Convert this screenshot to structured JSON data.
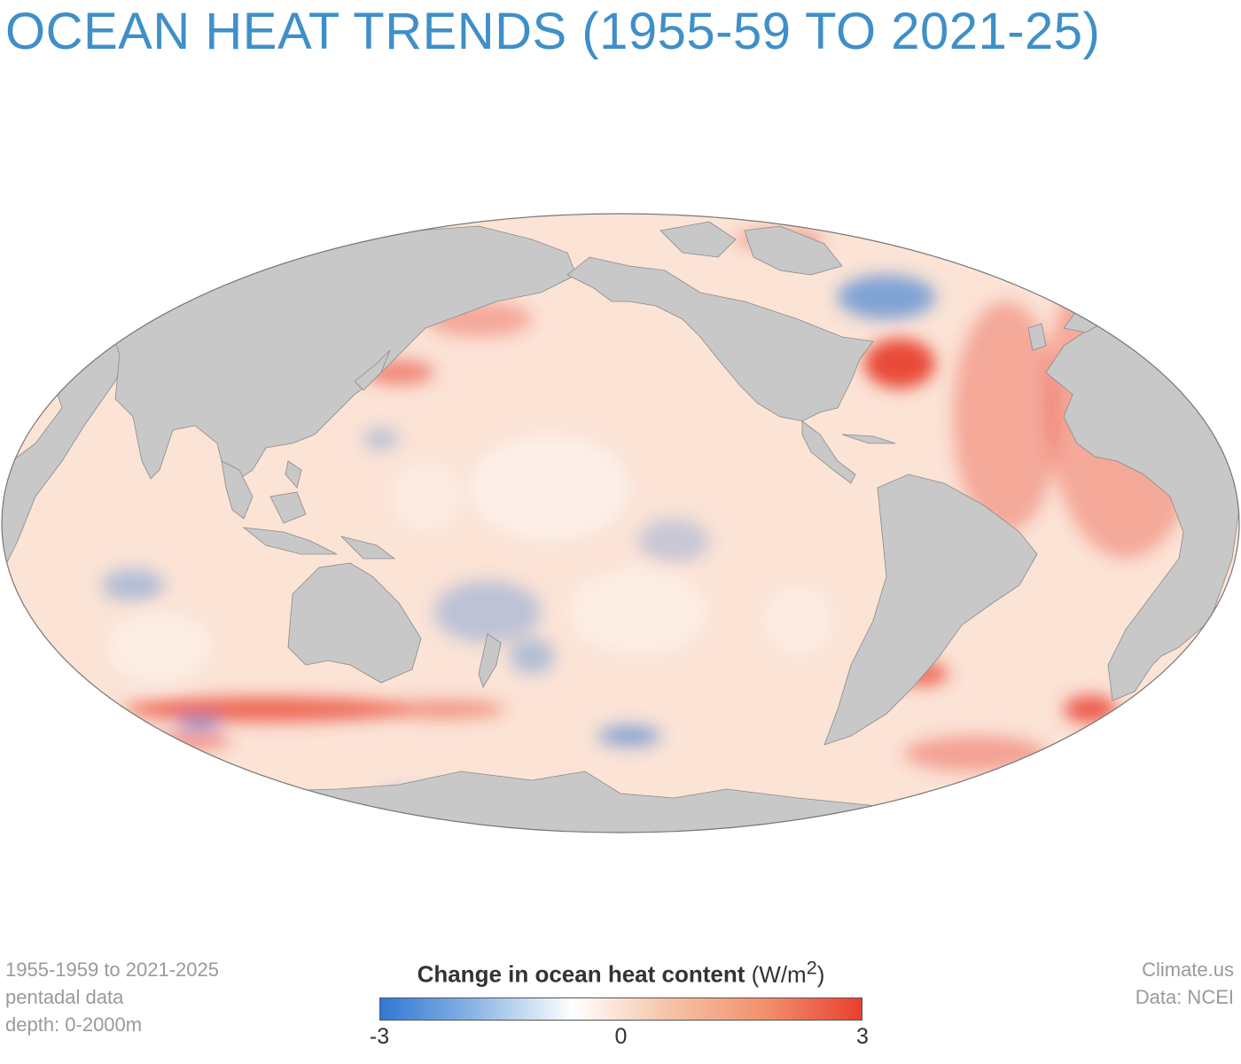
{
  "title": "OCEAN HEAT TRENDS (1955-59 TO 2021-25)",
  "map": {
    "projection": "Mollweide",
    "land_color": "#c8c8c8",
    "border_color": "#8a8a8a",
    "ocean_base_color": "#fbe3d6",
    "warm_color": "#e8402e",
    "cool_color": "#2f78d4"
  },
  "legend": {
    "title_bold": "Change in ocean heat content",
    "unit_text": "(W/m",
    "unit_sup": "2",
    "unit_close": ")",
    "ticks": [
      "-3",
      "0",
      "3"
    ],
    "color_stops": [
      "#2f78d4",
      "#8db7e6",
      "#ffffff",
      "#f6c3a6",
      "#f28f6c",
      "#e8402e"
    ]
  },
  "footer_left": [
    "1955-1959 to 2021-2025",
    "pentadal data",
    "depth: 0-2000m"
  ],
  "footer_right": [
    "Climate.us",
    "Data: NCEI"
  ]
}
